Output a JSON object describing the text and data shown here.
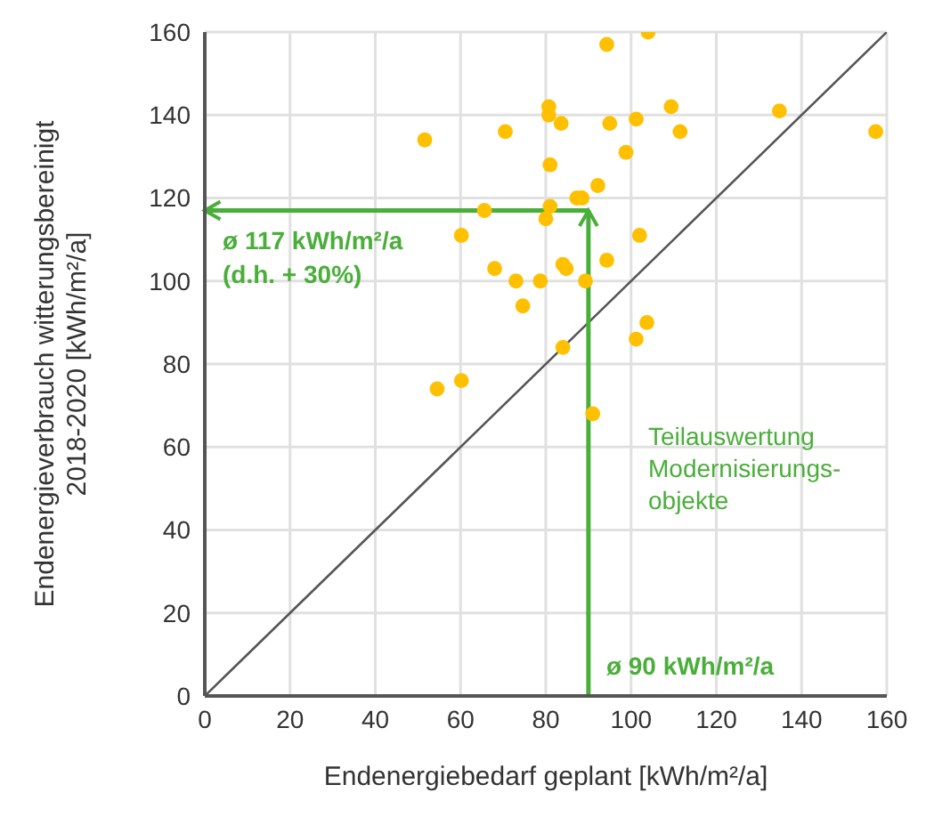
{
  "chart_data": {
    "type": "scatter",
    "xlabel": "Endenergiebedarf geplant [kWh/m²/a]",
    "ylabel": "Endenergieverbrauch witterungsbereinigt\n2018-2020  [kWh/m²/a]",
    "xlim": [
      0,
      160
    ],
    "ylim": [
      0,
      160
    ],
    "xticks": [
      0,
      20,
      40,
      60,
      80,
      100,
      120,
      140,
      160
    ],
    "yticks": [
      0,
      20,
      40,
      60,
      80,
      100,
      120,
      140,
      160
    ],
    "grid": true,
    "marker": "circle",
    "series": [
      {
        "color": "#ffc000",
        "x": [
          51.6,
          54.5,
          60.2,
          60.2,
          65.6,
          68,
          70.5,
          73,
          74.6,
          78.7,
          80.7,
          80.7,
          81,
          81,
          80,
          83.6,
          84,
          84.8,
          84,
          87.3,
          88.5,
          89.3,
          91,
          92.2,
          94.3,
          94.3,
          95,
          98.8,
          101.2,
          102,
          101.2,
          103.7,
          104,
          109.4,
          111.5,
          134.8,
          157.4
        ],
        "values": [
          134,
          74,
          76,
          111,
          117,
          103,
          136,
          100,
          94,
          100,
          142,
          140,
          128,
          118,
          115,
          138,
          104,
          103,
          84,
          120,
          120,
          100,
          68,
          123,
          105,
          157,
          138,
          131,
          139,
          111,
          86,
          90,
          160,
          142,
          136,
          141,
          136
        ]
      },
      {
        "type": "line",
        "color": "#555555",
        "marker": "none",
        "x": [
          0,
          160
        ],
        "values": [
          0,
          160
        ]
      }
    ],
    "ref_lines": [
      {
        "axis": "y",
        "value": 117,
        "label": "ø 117 kWh/m²/a\n(d.h. + 30%)",
        "color": "#4aae3a"
      },
      {
        "axis": "x",
        "value": 90,
        "label": "ø 90 kWh/m²/a",
        "color": "#4aae3a"
      }
    ],
    "annotations": [
      "Teilauswertung\nModernisierungs-\nobjekte"
    ]
  }
}
